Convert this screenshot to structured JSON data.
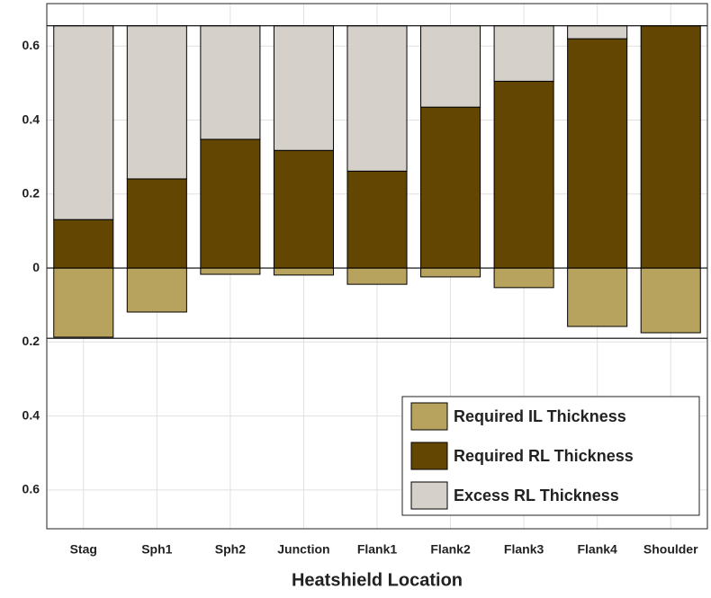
{
  "chart_data": {
    "type": "stacked_bar",
    "xlabel": "Heatshield Location",
    "categories": [
      "Stag",
      "Sph1",
      "Sph2",
      "Junction",
      "Flank1",
      "Flank2",
      "Flank3",
      "Flank4",
      "Shoulder"
    ],
    "series": [
      {
        "name": "Required IL Thickness",
        "color": "#b8a35e",
        "values": [
          -0.187,
          -0.119,
          -0.017,
          -0.019,
          -0.044,
          -0.024,
          -0.053,
          -0.158,
          -0.175
        ]
      },
      {
        "name": "Required RL Thickness",
        "color": "#634601",
        "values": [
          0.131,
          0.241,
          0.348,
          0.318,
          0.262,
          0.435,
          0.505,
          0.62,
          0.655
        ]
      },
      {
        "name": "Excess RL Thickness",
        "color": "#d5d0ca",
        "values": [
          0.524,
          0.414,
          0.307,
          0.337,
          0.393,
          0.22,
          0.15,
          0.035,
          0
        ]
      }
    ],
    "reference_lines": [
      0.655,
      0,
      -0.19
    ],
    "ylim": [
      -0.705,
      0.715
    ],
    "yticks": [
      {
        "value": -0.6,
        "label": "0.6"
      },
      {
        "value": -0.4,
        "label": "0.4"
      },
      {
        "value": -0.2,
        "label": "0.2"
      },
      0,
      0.2,
      0.4,
      0.6
    ],
    "grid": true,
    "legend": "lower right"
  }
}
